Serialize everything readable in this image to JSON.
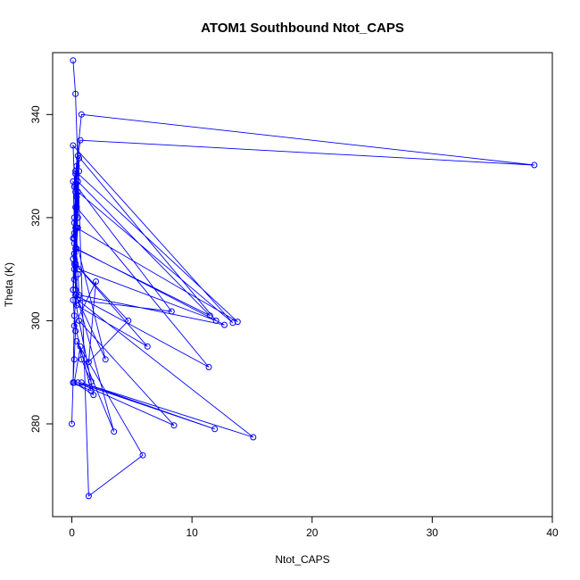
{
  "chart_data": {
    "type": "line",
    "title": "ATOM1 Southbound Ntot_CAPS",
    "xlabel": "Ntot_CAPS",
    "ylabel": "Theta (K)",
    "xlim": [
      -1.6,
      40
    ],
    "ylim": [
      262,
      352
    ],
    "x_ticks": [
      0,
      10,
      20,
      30,
      40
    ],
    "y_ticks": [
      280,
      300,
      320,
      340
    ],
    "grid": false,
    "legend": "none",
    "series_color": "#0000ff",
    "series": [
      {
        "x": [
          0.0,
          0.1,
          0.2,
          0.3,
          0.1,
          0.2,
          0.5,
          0.2,
          0.8,
          38.5,
          0.7,
          0.3,
          0.5,
          0.6,
          0.3,
          0.1,
          0.4,
          0.2,
          0.3,
          0.6,
          0.1,
          0.3,
          0.2,
          0.4,
          0.5,
          11.5,
          0.3,
          0.4,
          0.2,
          0.1,
          0.5,
          12.0,
          0.6,
          0.2,
          0.3,
          0.1,
          13.4,
          0.5,
          0.2,
          0.4,
          13.8,
          0.3,
          0.2,
          0.5,
          0.6,
          12.7,
          0.4,
          0.2,
          0.1,
          8.3,
          0.5,
          0.2,
          0.4,
          11.4,
          0.3,
          0.2,
          2.0,
          1.4,
          4.7,
          0.3,
          6.3,
          0.4,
          0.2,
          2.8,
          0.1,
          1.6,
          0.8,
          0.2,
          0.1,
          1.6,
          0.7,
          0.2,
          1.8,
          0.6,
          8.5,
          0.5,
          11.9,
          0.8,
          15.1,
          0.5,
          3.5,
          0.4,
          5.9,
          1.4,
          0.3,
          0.1
        ],
        "y": [
          280.0,
          288.0,
          292.5,
          298.0,
          304.0,
          310.0,
          318.0,
          326.0,
          340.0,
          330.2,
          335.0,
          328.5,
          320.0,
          331.5,
          325.0,
          316.0,
          322.0,
          313.0,
          306.0,
          329.0,
          312.0,
          318.0,
          308.0,
          324.0,
          327.0,
          301.0,
          314.0,
          330.0,
          319.0,
          306.0,
          332.0,
          300.0,
          310.0,
          315.0,
          322.0,
          334.0,
          299.6,
          325.0,
          311.0,
          318.0,
          299.8,
          329.0,
          316.0,
          309.0,
          305.0,
          299.2,
          314.0,
          320.0,
          327.0,
          301.8,
          304.0,
          313.0,
          322.0,
          291.0,
          305.0,
          299.0,
          307.6,
          292.0,
          300.0,
          311.0,
          295.0,
          303.0,
          317.0,
          292.5,
          306.0,
          288.2,
          292.5,
          301.0,
          288.0,
          286.4,
          295.0,
          288.0,
          285.6,
          300.0,
          279.7,
          288.0,
          279.0,
          288.0,
          277.4,
          304.0,
          278.5,
          296.0,
          273.9,
          266.0,
          344.0,
          350.5
        ]
      }
    ]
  }
}
